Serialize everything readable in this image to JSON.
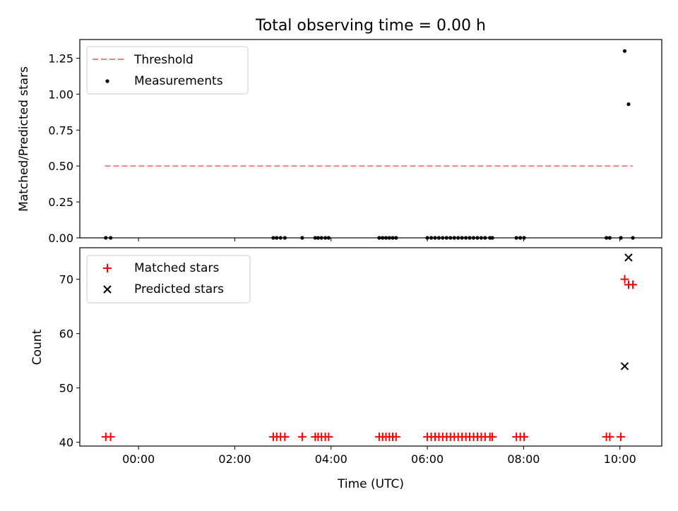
{
  "chart_data": [
    {
      "type": "scatter",
      "title": "Total observing time = 0.00 h",
      "ylabel": "Matched/Predicted stars",
      "xlabel": "",
      "xlim_hours": [
        -1.22,
        10.87
      ],
      "ylim": [
        0,
        1.38
      ],
      "x_ticks": [
        "00:00",
        "02:00",
        "04:00",
        "06:00",
        "08:00",
        "10:00"
      ],
      "x_tick_hours": [
        0,
        2,
        4,
        6,
        8,
        10
      ],
      "y_ticks": [
        "0.00",
        "0.25",
        "0.50",
        "0.75",
        "1.00",
        "1.25"
      ],
      "y_tick_values": [
        0,
        0.25,
        0.5,
        0.75,
        1.0,
        1.25
      ],
      "grid": false,
      "legend_position": "top-left",
      "legend": [
        "Threshold",
        "Measurements"
      ],
      "threshold": {
        "name": "Threshold",
        "value": 0.5,
        "x_range_hours": [
          -0.7,
          10.27
        ],
        "color": "#f08080",
        "style": "dashed"
      },
      "series": [
        {
          "name": "Measurements",
          "color": "#000000",
          "marker": "dot",
          "x_hours": [
            -0.68,
            -0.58,
            2.8,
            2.87,
            2.95,
            3.04,
            3.4,
            3.67,
            3.73,
            3.8,
            3.88,
            3.95,
            5.0,
            5.07,
            5.14,
            5.21,
            5.28,
            5.35,
            6.0,
            6.08,
            6.16,
            6.24,
            6.32,
            6.4,
            6.48,
            6.56,
            6.64,
            6.72,
            6.8,
            6.88,
            6.96,
            7.04,
            7.12,
            7.2,
            7.3,
            7.35,
            7.85,
            7.93,
            8.01,
            9.72,
            9.79,
            10.02,
            10.1,
            10.18,
            10.27
          ],
          "y": [
            0,
            0,
            0,
            0,
            0,
            0,
            0,
            0,
            0,
            0,
            0,
            0,
            0,
            0,
            0,
            0,
            0,
            0,
            0,
            0,
            0,
            0,
            0,
            0,
            0,
            0,
            0,
            0,
            0,
            0,
            0,
            0,
            0,
            0,
            0,
            0,
            0,
            0,
            0,
            0,
            0,
            0,
            1.3,
            0.93,
            0
          ]
        }
      ]
    },
    {
      "type": "scatter",
      "title": "",
      "ylabel": "Count",
      "xlabel": "Time (UTC)",
      "xlim_hours": [
        -1.22,
        10.87
      ],
      "ylim": [
        39.3,
        75.8
      ],
      "x_ticks": [
        "00:00",
        "02:00",
        "04:00",
        "06:00",
        "08:00",
        "10:00"
      ],
      "x_tick_hours": [
        0,
        2,
        4,
        6,
        8,
        10
      ],
      "y_ticks": [
        "40",
        "50",
        "60",
        "70"
      ],
      "y_tick_values": [
        40,
        50,
        60,
        70
      ],
      "grid": false,
      "legend_position": "top-left",
      "legend": [
        "Matched stars",
        "Predicted stars"
      ],
      "series": [
        {
          "name": "Matched stars",
          "color": "#ff0000",
          "marker": "plus",
          "x_hours": [
            -0.68,
            -0.58,
            2.8,
            2.87,
            2.95,
            3.04,
            3.4,
            3.67,
            3.73,
            3.8,
            3.88,
            3.95,
            5.0,
            5.07,
            5.14,
            5.21,
            5.28,
            5.35,
            6.0,
            6.08,
            6.16,
            6.24,
            6.32,
            6.4,
            6.48,
            6.56,
            6.64,
            6.72,
            6.8,
            6.88,
            6.96,
            7.04,
            7.12,
            7.2,
            7.3,
            7.35,
            7.85,
            7.93,
            8.01,
            9.72,
            9.79,
            10.02,
            10.1,
            10.18,
            10.27
          ],
          "y": [
            41,
            41,
            41,
            41,
            41,
            41,
            41,
            41,
            41,
            41,
            41,
            41,
            41,
            41,
            41,
            41,
            41,
            41,
            41,
            41,
            41,
            41,
            41,
            41,
            41,
            41,
            41,
            41,
            41,
            41,
            41,
            41,
            41,
            41,
            41,
            41,
            41,
            41,
            41,
            41,
            41,
            41,
            70,
            69,
            69
          ]
        },
        {
          "name": "Predicted stars",
          "color": "#000000",
          "marker": "x",
          "x_hours": [
            10.1,
            10.18
          ],
          "y": [
            54,
            74
          ]
        }
      ]
    }
  ]
}
